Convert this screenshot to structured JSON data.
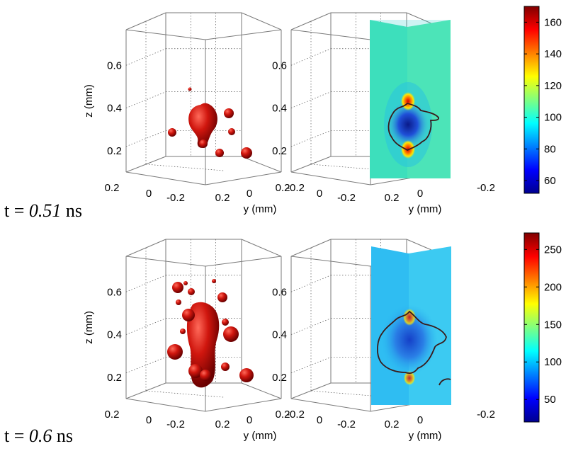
{
  "figure": {
    "panel_rows": [
      {
        "time_label": {
          "prefix": "t = ",
          "value": "0.51",
          "unit": " ns"
        }
      },
      {
        "time_label": {
          "prefix": "t = ",
          "value": "0.6",
          "unit": " ns"
        }
      }
    ]
  },
  "colors": {
    "isosurface": "#c8140e",
    "contour": "#3a1a1a",
    "box": "#7a7a7a",
    "grid": "#555555"
  },
  "chart_data": [
    {
      "type": "3d-isosurface",
      "panel": "top-left",
      "zlabel": "z (mm)",
      "ylabel": "y (mm)",
      "xlabel": "",
      "zticks": [
        "0.2",
        "0.4",
        "0.6"
      ],
      "yticks": [
        "-0.2",
        "0"
      ],
      "xticks": [
        "0.2",
        "0"
      ],
      "zlim": [
        0.15,
        0.72
      ]
    },
    {
      "type": "heatmap-slices",
      "panel": "top-right",
      "ylabel": "y (mm)",
      "zticks": [
        "0.2",
        "0.4",
        "0.6"
      ],
      "yticks": [
        "-0.2",
        "0",
        "0.2"
      ],
      "xticks": [
        "0"
      ],
      "colorbar": {
        "ticks": [
          "60",
          "80",
          "100",
          "120",
          "140",
          "160"
        ],
        "range": [
          52,
          170
        ],
        "colormap": "jet"
      }
    },
    {
      "type": "3d-isosurface",
      "panel": "bottom-left",
      "zlabel": "z (mm)",
      "ylabel": "y (mm)",
      "xlabel": "",
      "zticks": [
        "0.2",
        "0.4",
        "0.6"
      ],
      "yticks": [
        "-0.2",
        "0"
      ],
      "xticks": [
        "0.2",
        "0"
      ],
      "zlim": [
        0.15,
        0.72
      ]
    },
    {
      "type": "heatmap-slices",
      "panel": "bottom-right",
      "ylabel": "y (mm)",
      "zticks": [
        "0.2",
        "0.4",
        "0.6"
      ],
      "yticks": [
        "-0.2",
        "0",
        "0.2"
      ],
      "xticks": [
        "0"
      ],
      "colorbar": {
        "ticks": [
          "50",
          "100",
          "150",
          "200",
          "250"
        ],
        "range": [
          20,
          272
        ],
        "colormap": "jet"
      }
    }
  ]
}
